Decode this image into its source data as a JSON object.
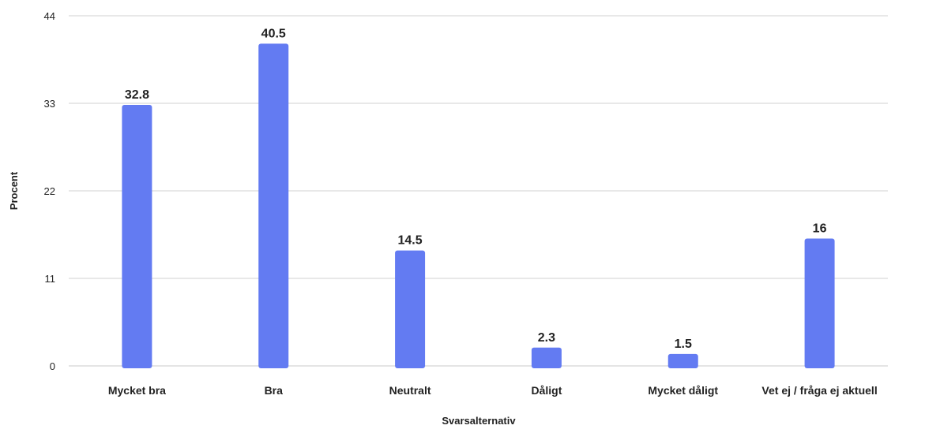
{
  "chart_data": {
    "type": "bar",
    "categories": [
      "Mycket bra",
      "Bra",
      "Neutralt",
      "Dåligt",
      "Mycket dåligt",
      "Vet ej / fråga ej aktuell"
    ],
    "values": [
      32.8,
      40.5,
      14.5,
      2.3,
      1.5,
      16
    ],
    "value_labels": [
      "32.8",
      "40.5",
      "14.5",
      "2.3",
      "1.5",
      "16"
    ],
    "xlabel": "Svarsalternativ",
    "ylabel": "Procent",
    "ylim": [
      0,
      44
    ],
    "yticks": [
      0,
      11,
      22,
      33,
      44
    ],
    "ytick_labels": [
      "0",
      "11",
      "22",
      "33",
      "44"
    ],
    "grid": true,
    "legend": "none",
    "bar_color": "#637bf2"
  }
}
